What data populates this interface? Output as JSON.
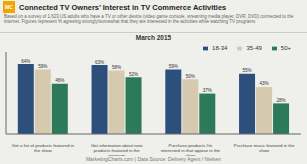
{
  "chart_data": {
    "type": "bar",
    "title": "Connected TV Owners’ Interest in TV Commerce Activities",
    "subtitle": "March 2015",
    "note": "Based on a survey of 1,623 US adults who have a TV or other device (video game console, streaming media player, DVR, DVD) connected to the internet. Figures represent % agreeing strongly/somewhat that they are interested in the activities while watching TV programs",
    "footer": "MarketingCharts.com | Data Source: Delivery Agent / Nielsen",
    "annotations": [
      "MC"
    ],
    "categories": [
      "Get a list of products featured in\nthe show",
      "Get information about new\nproducts featured in the\nprogram",
      "Purchase products I'm\ninterested in that appear in the\nshow",
      "Purchase music featured in the\nshow"
    ],
    "series": [
      {
        "name": "18-34",
        "color": "#2d4f7c",
        "values": [
          64,
          63,
          59,
          55
        ],
        "value_labels": [
          "64%",
          "63%",
          "59%",
          "55%"
        ]
      },
      {
        "name": "35-49",
        "color": "#d5c9b0",
        "values": [
          59,
          58,
          50,
          43
        ],
        "value_labels": [
          "59%",
          "58%",
          "50%",
          "43%"
        ]
      },
      {
        "name": "50+",
        "color": "#2d7a5a",
        "values": [
          46,
          52,
          37,
          28
        ],
        "value_labels": [
          "46%",
          "52%",
          "37%",
          "28%"
        ]
      }
    ],
    "ylim": [
      0,
      75
    ],
    "grid": false,
    "legend": "upper right",
    "data_labels": true,
    "tick_labels": "x"
  }
}
